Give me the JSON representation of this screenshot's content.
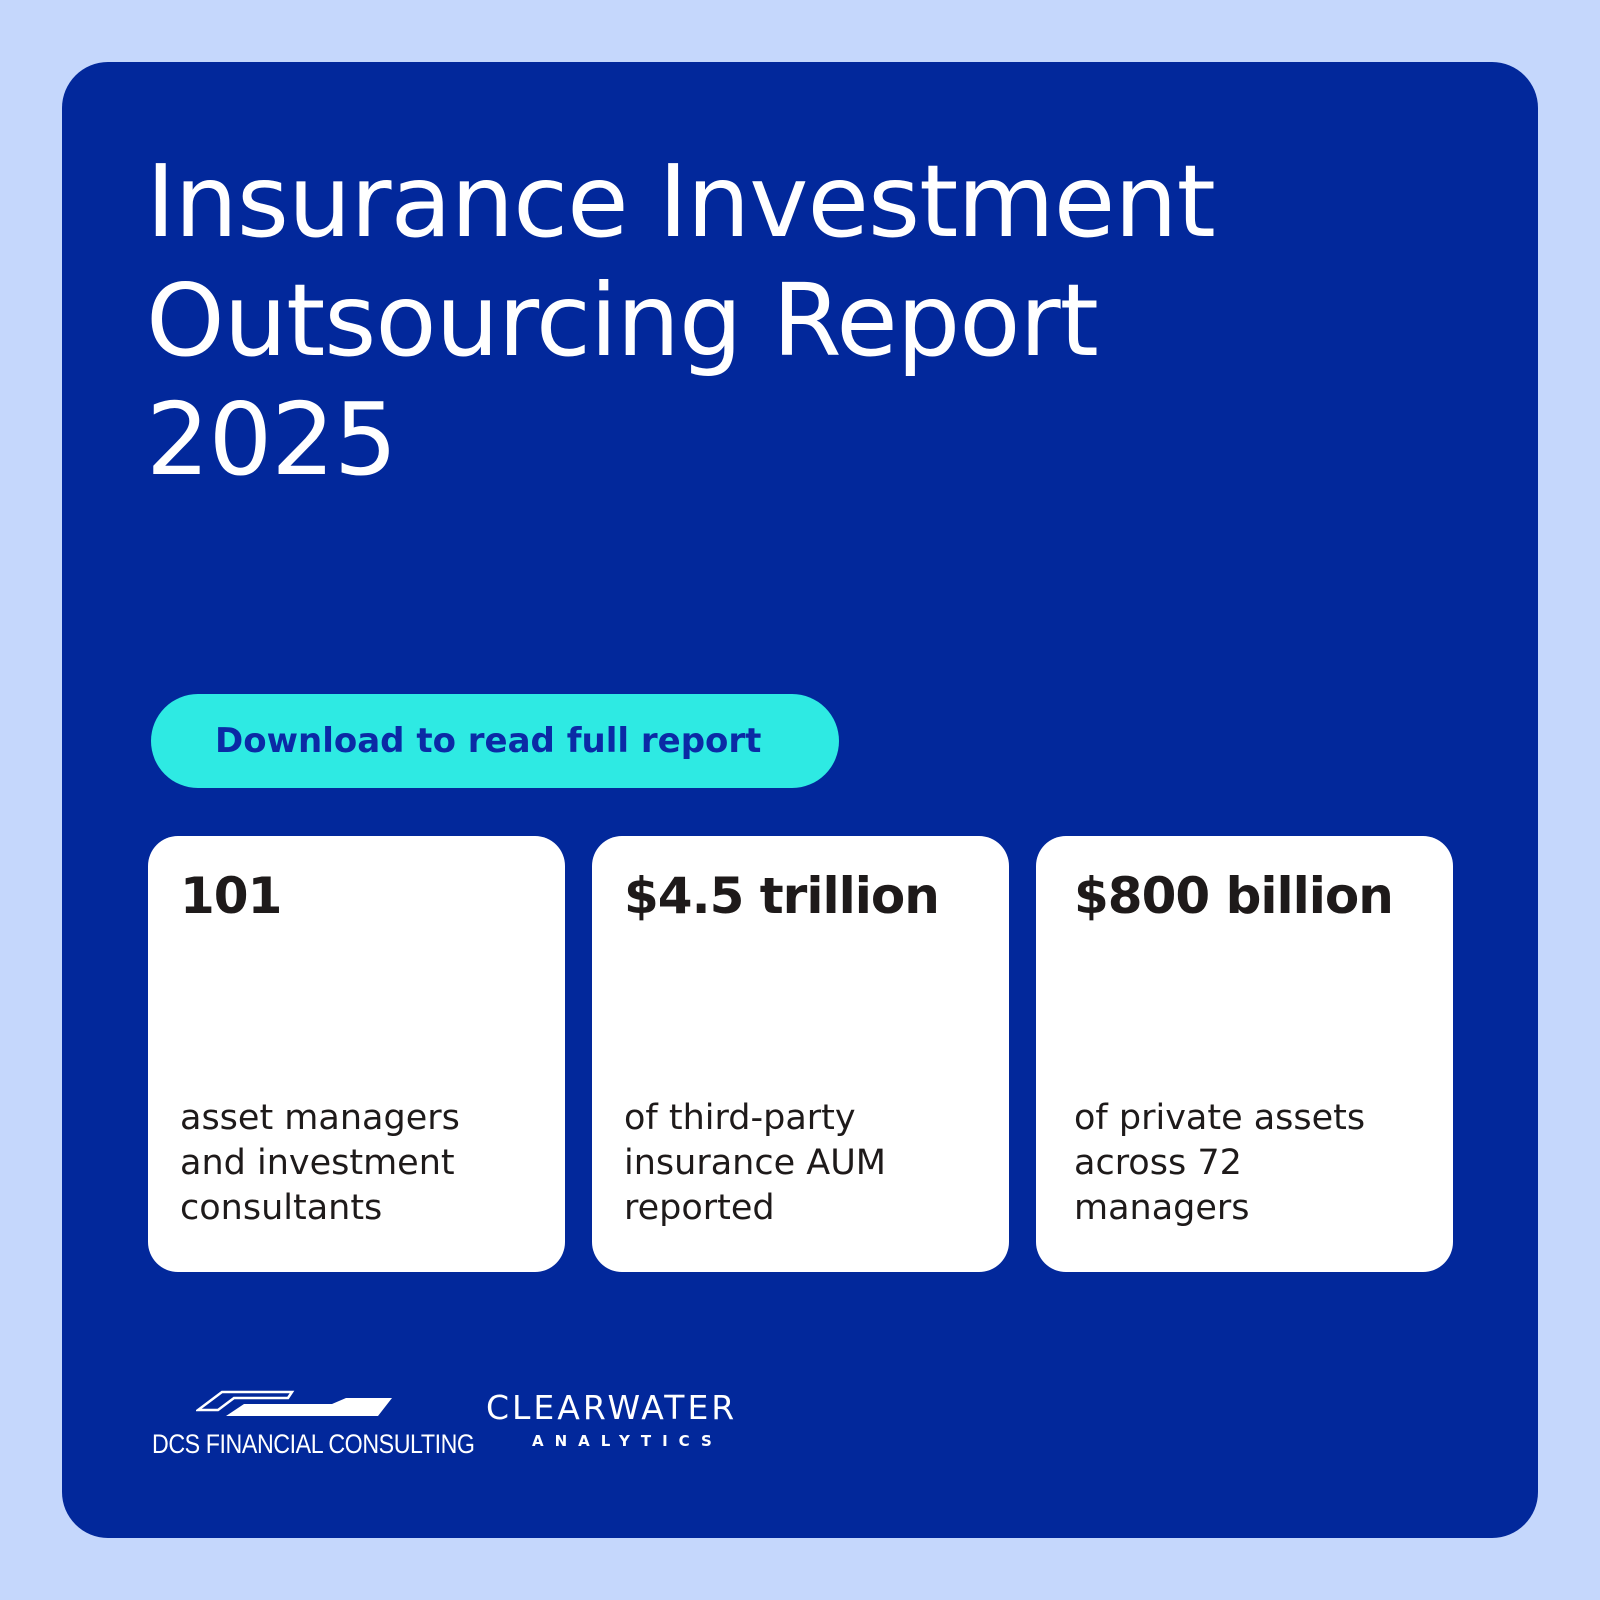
{
  "title_lines": [
    "Insurance Investment",
    "Outsourcing Report",
    "2025"
  ],
  "cta": {
    "label": "Download to read full report"
  },
  "stats": [
    {
      "value": "101",
      "desc_lines": [
        "asset managers",
        "and investment",
        "consultants"
      ]
    },
    {
      "value": "$4.5 trillion",
      "desc_lines": [
        "of third-party",
        "insurance AUM",
        "reported"
      ]
    },
    {
      "value": "$800 billion",
      "desc_lines": [
        "of private assets",
        "across 72",
        "managers"
      ]
    }
  ],
  "logos": {
    "dcs": {
      "prefix": "DCS",
      "name": "FINANCIAL CONSULTING"
    },
    "clearwater": {
      "name": "CLEARWATER",
      "sub": "ANALYTICS"
    }
  },
  "colors": {
    "background": "#c5d7fc",
    "card": "#02289b",
    "accent": "#2eeae3",
    "cta_text": "#0b2aa5",
    "stat_card": "#ffffff"
  }
}
